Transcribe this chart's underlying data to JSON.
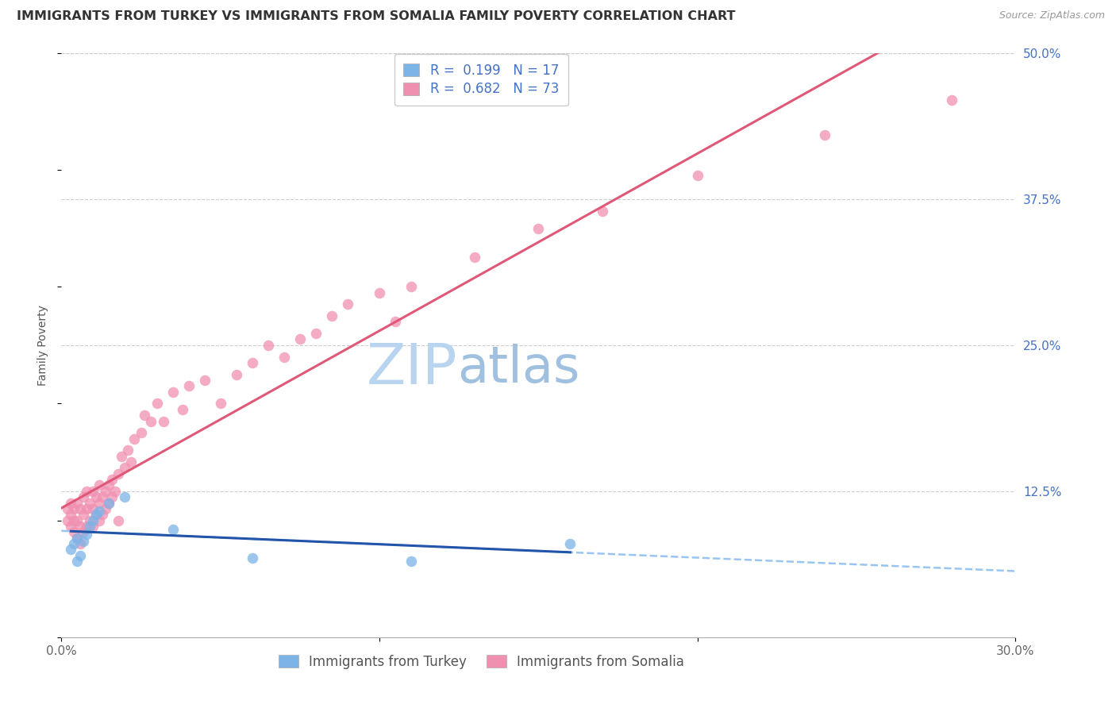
{
  "title": "IMMIGRANTS FROM TURKEY VS IMMIGRANTS FROM SOMALIA FAMILY POVERTY CORRELATION CHART",
  "source": "Source: ZipAtlas.com",
  "ylabel": "Family Poverty",
  "legend_turkey": "Immigrants from Turkey",
  "legend_somalia": "Immigrants from Somalia",
  "R_turkey": 0.199,
  "N_turkey": 17,
  "R_somalia": 0.682,
  "N_somalia": 73,
  "xlim": [
    0.0,
    0.3
  ],
  "ylim": [
    0.0,
    0.5
  ],
  "y_ticks_right": [
    0.125,
    0.25,
    0.375,
    0.5
  ],
  "y_tick_labels_right": [
    "12.5%",
    "25.0%",
    "37.5%",
    "50.0%"
  ],
  "color_turkey": "#7cb4e8",
  "color_somalia": "#f090b0",
  "trendline_turkey_solid_color": "#2255aa",
  "trendline_turkey_dashed_color": "#88bbee",
  "trendline_somalia_color": "#e05878",
  "watermark_zip_color": "#c8dff5",
  "watermark_atlas_color": "#a8c8e8",
  "background_color": "#ffffff",
  "grid_color": "#cccccc",
  "turkey_x": [
    0.003,
    0.004,
    0.005,
    0.005,
    0.006,
    0.007,
    0.008,
    0.009,
    0.01,
    0.011,
    0.012,
    0.015,
    0.02,
    0.035,
    0.06,
    0.11,
    0.16
  ],
  "turkey_y": [
    0.075,
    0.08,
    0.085,
    0.065,
    0.07,
    0.082,
    0.088,
    0.095,
    0.1,
    0.105,
    0.108,
    0.115,
    0.12,
    0.092,
    0.068,
    0.065,
    0.08
  ],
  "somalia_x": [
    0.002,
    0.002,
    0.003,
    0.003,
    0.003,
    0.004,
    0.004,
    0.004,
    0.005,
    0.005,
    0.005,
    0.006,
    0.006,
    0.006,
    0.007,
    0.007,
    0.007,
    0.008,
    0.008,
    0.008,
    0.009,
    0.009,
    0.01,
    0.01,
    0.01,
    0.011,
    0.011,
    0.012,
    0.012,
    0.012,
    0.013,
    0.013,
    0.014,
    0.014,
    0.015,
    0.015,
    0.016,
    0.016,
    0.017,
    0.018,
    0.018,
    0.019,
    0.02,
    0.021,
    0.022,
    0.023,
    0.025,
    0.026,
    0.028,
    0.03,
    0.032,
    0.035,
    0.038,
    0.04,
    0.045,
    0.05,
    0.055,
    0.06,
    0.065,
    0.07,
    0.075,
    0.08,
    0.085,
    0.09,
    0.1,
    0.105,
    0.11,
    0.13,
    0.15,
    0.17,
    0.2,
    0.24,
    0.28
  ],
  "somalia_y": [
    0.1,
    0.11,
    0.095,
    0.105,
    0.115,
    0.09,
    0.1,
    0.11,
    0.085,
    0.1,
    0.115,
    0.08,
    0.095,
    0.11,
    0.09,
    0.105,
    0.12,
    0.095,
    0.11,
    0.125,
    0.1,
    0.115,
    0.095,
    0.11,
    0.125,
    0.105,
    0.12,
    0.1,
    0.115,
    0.13,
    0.105,
    0.12,
    0.11,
    0.125,
    0.115,
    0.13,
    0.12,
    0.135,
    0.125,
    0.1,
    0.14,
    0.155,
    0.145,
    0.16,
    0.15,
    0.17,
    0.175,
    0.19,
    0.185,
    0.2,
    0.185,
    0.21,
    0.195,
    0.215,
    0.22,
    0.2,
    0.225,
    0.235,
    0.25,
    0.24,
    0.255,
    0.26,
    0.275,
    0.285,
    0.295,
    0.27,
    0.3,
    0.325,
    0.35,
    0.365,
    0.395,
    0.43,
    0.46
  ],
  "title_fontsize": 11.5,
  "axis_label_fontsize": 10,
  "tick_fontsize": 11,
  "legend_fontsize": 12,
  "watermark_fontsize": 52
}
